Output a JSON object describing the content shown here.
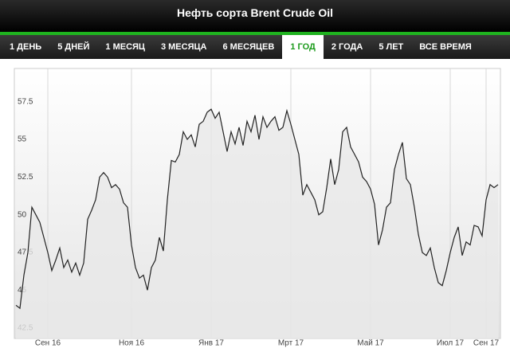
{
  "header": {
    "title": "Нефть сорта Brent Crude Oil"
  },
  "tabs": {
    "items": [
      "1 ДЕНЬ",
      "5 ДНЕЙ",
      "1 МЕСЯЦ",
      "3 МЕСЯЦА",
      "6 МЕСЯЦЕВ",
      "1 ГОД",
      "2 ГОДА",
      "5 ЛЕТ",
      "ВСЕ ВРЕМЯ"
    ],
    "active": 5
  },
  "chart_data": {
    "type": "line",
    "categories": [
      null,
      null,
      null,
      null,
      null,
      null,
      null,
      null,
      "Сен 16",
      null,
      null,
      null,
      null,
      null,
      null,
      null,
      null,
      null,
      null,
      null,
      null,
      null,
      null,
      null,
      null,
      null,
      null,
      null,
      null,
      "Ноя 16",
      null,
      null,
      null,
      null,
      null,
      null,
      null,
      null,
      null,
      null,
      null,
      null,
      null,
      null,
      null,
      null,
      null,
      null,
      null,
      "Янв 17",
      null,
      null,
      null,
      null,
      null,
      null,
      null,
      null,
      null,
      null,
      null,
      null,
      null,
      null,
      null,
      null,
      null,
      null,
      null,
      "Мрт 17",
      null,
      null,
      null,
      null,
      null,
      null,
      null,
      null,
      null,
      null,
      null,
      null,
      null,
      null,
      null,
      null,
      null,
      null,
      null,
      "Май 17",
      null,
      null,
      null,
      null,
      null,
      null,
      null,
      null,
      null,
      null,
      null,
      null,
      null,
      null,
      null,
      null,
      null,
      null,
      null,
      "Июл 17",
      null,
      null,
      null,
      null,
      null,
      null,
      null,
      null,
      "Сен 17",
      null,
      null,
      null
    ],
    "values": [
      44,
      43.8,
      46,
      47.5,
      50.5,
      50,
      49.5,
      48.5,
      47.5,
      46.3,
      47,
      47.8,
      46.5,
      47,
      46.2,
      46.8,
      46,
      46.8,
      49.7,
      50.3,
      51,
      52.5,
      52.8,
      52.5,
      51.8,
      52,
      51.7,
      50.8,
      50.5,
      48,
      46.5,
      45.8,
      46,
      45,
      46.5,
      47,
      48.5,
      47.6,
      51,
      53.6,
      53.5,
      54,
      55.5,
      55,
      55.3,
      54.5,
      56,
      56.2,
      56.8,
      57,
      56.4,
      56.8,
      55.5,
      54.2,
      55.5,
      54.7,
      55.8,
      54.6,
      56.2,
      55.5,
      56.6,
      55,
      56.5,
      55.8,
      56.2,
      56.5,
      55.6,
      55.8,
      56.9,
      56,
      55,
      54,
      51.3,
      52,
      51.5,
      51,
      50,
      50.2,
      51.8,
      53.7,
      52,
      53,
      55.5,
      55.8,
      54.5,
      54,
      53.5,
      52.5,
      52.2,
      51.7,
      50.7,
      48,
      49,
      50.5,
      50.8,
      53,
      54,
      54.8,
      52.4,
      52,
      50.5,
      48.7,
      47.5,
      47.3,
      47.8,
      46.5,
      45.5,
      45.3,
      46.3,
      47.5,
      48.5,
      49.2,
      47.3,
      48.2,
      48,
      49.3,
      49.2,
      48.6,
      51,
      52,
      51.8,
      52
    ],
    "color": "#222222",
    "ylim": [
      41.8,
      59.7
    ],
    "yticks": [
      42.5,
      45,
      47.5,
      50,
      52.5,
      55,
      57.5
    ],
    "grid": true
  }
}
